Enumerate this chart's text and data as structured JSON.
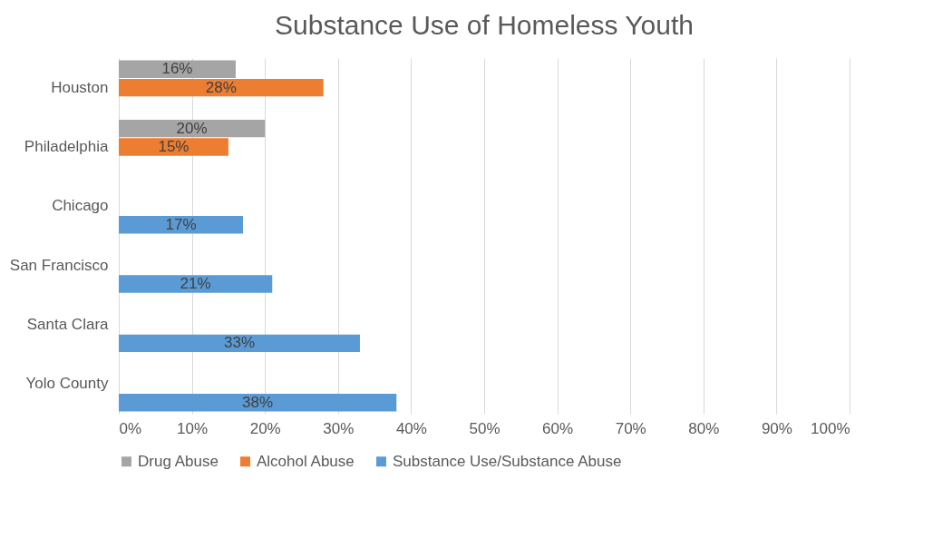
{
  "chart_data": {
    "type": "bar",
    "orientation": "horizontal",
    "title": "Substance Use of Homeless Youth",
    "categories": [
      "Houston",
      "Philadelphia",
      "Chicago",
      "San Francisco",
      "Santa Clara",
      "Yolo County"
    ],
    "series": [
      {
        "name": "Drug Abuse",
        "color": "#a5a5a5",
        "values": [
          16,
          20,
          null,
          null,
          null,
          null
        ],
        "value_labels": [
          "16%",
          "20%",
          null,
          null,
          null,
          null
        ]
      },
      {
        "name": "Alcohol Abuse",
        "color": "#ed7d31",
        "values": [
          28,
          15,
          null,
          null,
          null,
          null
        ],
        "value_labels": [
          "28%",
          "15%",
          null,
          null,
          null,
          null
        ]
      },
      {
        "name": "Substance Use/Substance Abuse",
        "color": "#5b9bd5",
        "values": [
          null,
          null,
          17,
          21,
          33,
          38
        ],
        "value_labels": [
          null,
          null,
          "17%",
          "21%",
          "33%",
          "38%"
        ]
      }
    ],
    "xlim": [
      0,
      100
    ],
    "xticks": [
      {
        "value": 0,
        "label": "0%"
      },
      {
        "value": 10,
        "label": "10%"
      },
      {
        "value": 20,
        "label": "20%"
      },
      {
        "value": 30,
        "label": "30%"
      },
      {
        "value": 40,
        "label": "40%"
      },
      {
        "value": 50,
        "label": "50%"
      },
      {
        "value": 60,
        "label": "60%"
      },
      {
        "value": 70,
        "label": "70%"
      },
      {
        "value": 80,
        "label": "80%"
      },
      {
        "value": 90,
        "label": "90%"
      },
      {
        "value": 100,
        "label": "100%"
      }
    ],
    "grid": "x",
    "legend": "bottom"
  }
}
